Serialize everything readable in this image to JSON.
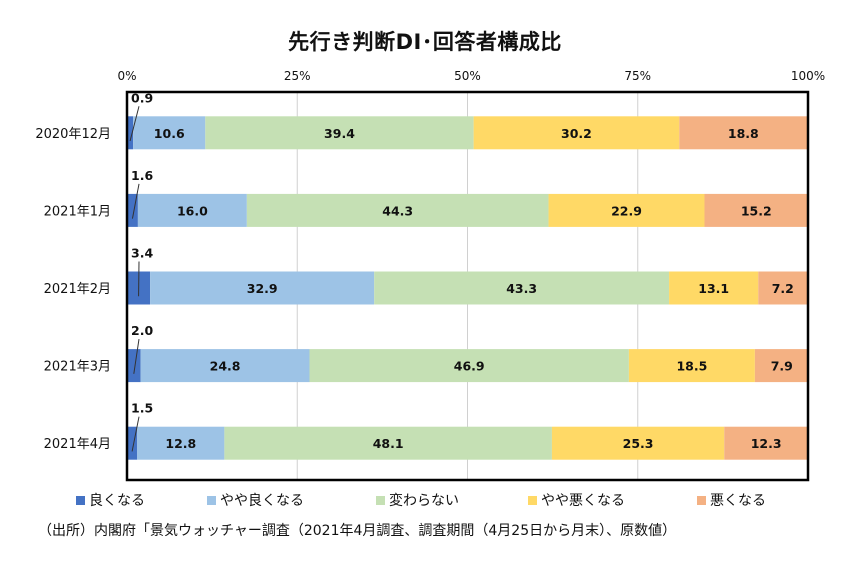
{
  "chart_data": {
    "type": "bar",
    "orientation": "horizontal-stacked-100",
    "title": "先行き判断DI･回答者構成比",
    "categories": [
      "2020年12月",
      "2021年1月",
      "2021年2月",
      "2021年3月",
      "2021年4月"
    ],
    "series": [
      {
        "name": "良くなる",
        "color": "#4472c4",
        "values": [
          0.9,
          1.6,
          3.4,
          2.0,
          1.5
        ]
      },
      {
        "name": "やや良くなる",
        "color": "#9dc3e6",
        "values": [
          10.6,
          16.0,
          32.9,
          24.8,
          12.8
        ]
      },
      {
        "name": "変わらない",
        "color": "#c5e0b4",
        "values": [
          39.4,
          44.3,
          43.3,
          46.9,
          48.1
        ]
      },
      {
        "name": "やや悪くなる",
        "color": "#ffd966",
        "values": [
          30.2,
          22.9,
          13.1,
          18.5,
          25.3
        ]
      },
      {
        "name": "悪くなる",
        "color": "#f4b183",
        "values": [
          18.8,
          15.2,
          7.2,
          7.9,
          12.3
        ]
      }
    ],
    "x_ticks": [
      "0%",
      "25%",
      "50%",
      "75%",
      "100%"
    ],
    "xlim": [
      0,
      100
    ],
    "grid": true,
    "legend_position": "bottom"
  },
  "source_note": "（出所）内閣府「景気ウォッチャー調査（2021年4月調査、調査期間（4月25日から月末）、原数値）"
}
